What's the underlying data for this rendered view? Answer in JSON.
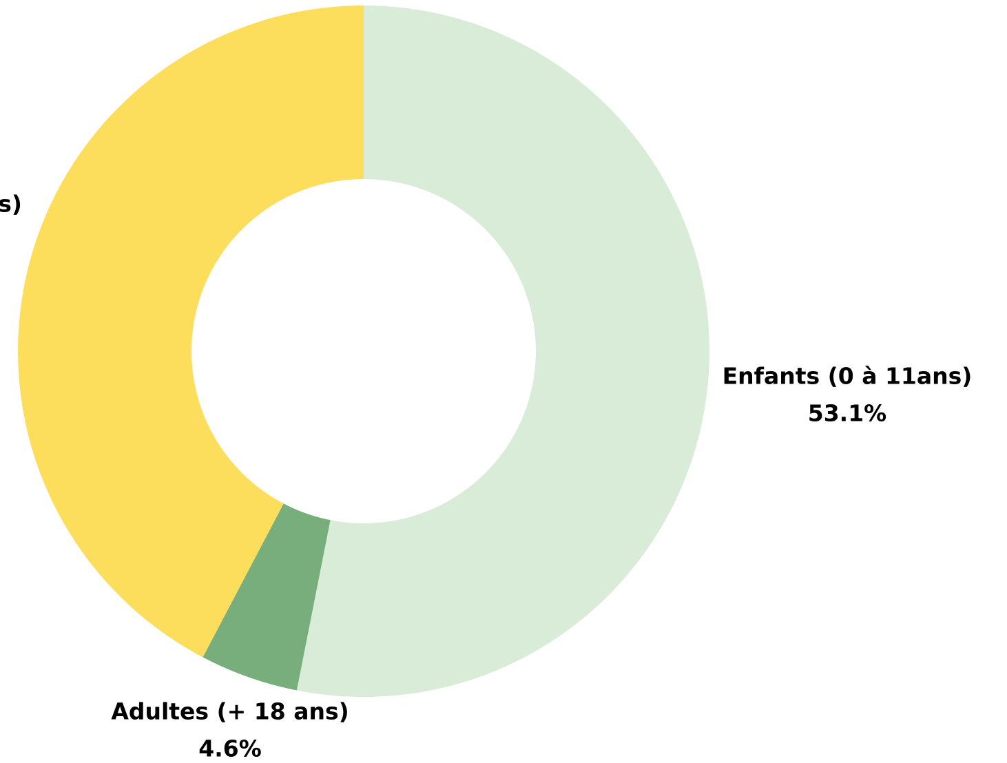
{
  "chart_data": {
    "type": "donut",
    "categories": [
      "Enfants (0 à 11ans)",
      "Adultes (+ 18 ans)",
      "s)"
    ],
    "values": [
      53.1,
      4.6,
      42.3
    ],
    "value_labels": [
      "53.1%",
      "4.6%",
      null
    ],
    "colors": [
      "#d9ecd7",
      "#77ae7b",
      "#fddd5c"
    ]
  }
}
